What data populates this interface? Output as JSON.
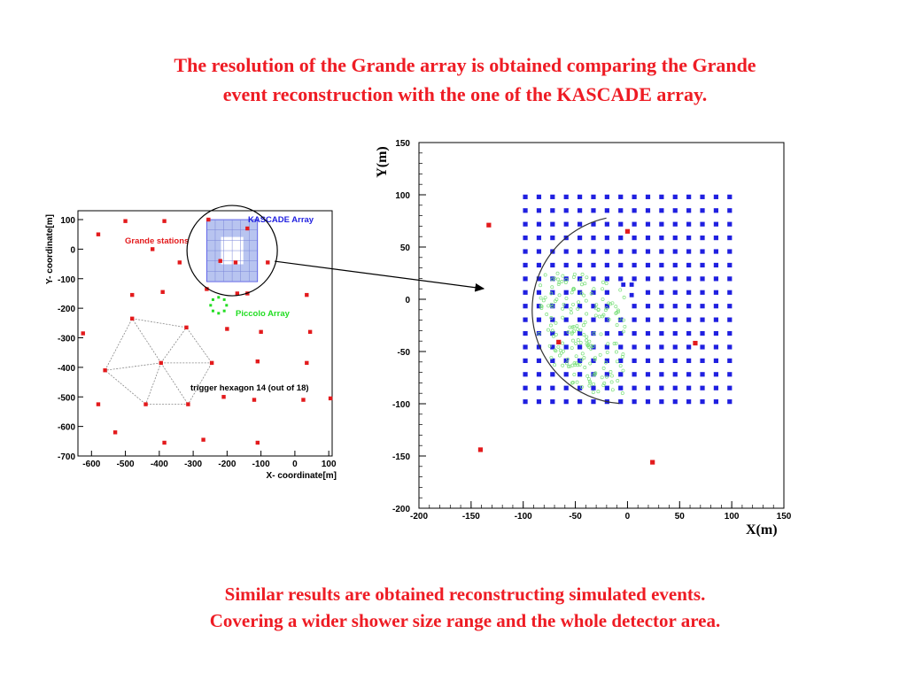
{
  "header": {
    "title_line1": "The resolution of the Grande array is obtained comparing the Grande",
    "title_line2": "event reconstruction with the one of the KASCADE array."
  },
  "footer": {
    "line1": "Similar results are obtained reconstructing simulated events.",
    "line2": "Covering a wider shower size range and the whole detector area."
  },
  "colors": {
    "title_red": "#ee1c24",
    "grande_station_red": "#e31a1c",
    "kascade_blue": "#1f1fe0",
    "kascade_fill": "#b8c4f0",
    "piccolo_green": "#22dd22",
    "shower_green": "#7ce07c"
  },
  "chart_data": [
    {
      "type": "scatter",
      "name": "grande-layout-map",
      "xlabel": "X- coordinate[m]",
      "ylabel": "Y- coordinate[m]",
      "xlim": [
        -640,
        110
      ],
      "ylim": [
        -700,
        130
      ],
      "xticks": [
        -600,
        -500,
        -400,
        -300,
        -200,
        -100,
        0,
        100
      ],
      "yticks": [
        100,
        0,
        -100,
        -200,
        -300,
        -400,
        -500,
        -600,
        -700
      ],
      "annotations": {
        "kascade": "KASCADE Array",
        "grande": "Grande stations",
        "piccolo": "Piccolo Array",
        "hexagon": "trigger hexagon 14 (out of 18)"
      },
      "kascade_region": {
        "x": [
          -260,
          -110
        ],
        "y": [
          -110,
          100
        ]
      },
      "piccolo_center": [
        -225,
        -190
      ],
      "grande_stations": [
        [
          -580,
          50
        ],
        [
          -500,
          95
        ],
        [
          -385,
          95
        ],
        [
          -255,
          100
        ],
        [
          -140,
          70
        ],
        [
          -420,
          0
        ],
        [
          -340,
          -45
        ],
        [
          -220,
          -40
        ],
        [
          -175,
          -45
        ],
        [
          -80,
          -45
        ],
        [
          -480,
          -155
        ],
        [
          -390,
          -145
        ],
        [
          -260,
          -135
        ],
        [
          -170,
          -150
        ],
        [
          35,
          -155
        ],
        [
          -140,
          -150
        ],
        [
          -625,
          -285
        ],
        [
          -480,
          -235
        ],
        [
          -320,
          -265
        ],
        [
          -200,
          -270
        ],
        [
          -100,
          -280
        ],
        [
          45,
          -280
        ],
        [
          -560,
          -410
        ],
        [
          -395,
          -385
        ],
        [
          -245,
          -385
        ],
        [
          -110,
          -380
        ],
        [
          35,
          -385
        ],
        [
          -580,
          -525
        ],
        [
          -440,
          -525
        ],
        [
          -315,
          -525
        ],
        [
          -210,
          -500
        ],
        [
          -120,
          -510
        ],
        [
          25,
          -510
        ],
        [
          105,
          -505
        ],
        [
          -530,
          -620
        ],
        [
          -385,
          -655
        ],
        [
          -270,
          -645
        ],
        [
          -110,
          -655
        ]
      ],
      "hexagon": [
        [
          -480,
          -235
        ],
        [
          -320,
          -265
        ],
        [
          -245,
          -385
        ],
        [
          -315,
          -525
        ],
        [
          -440,
          -525
        ],
        [
          -560,
          -410
        ]
      ],
      "hexagon_center": [
        -395,
        -385
      ]
    },
    {
      "type": "scatter",
      "name": "event-reconstruction-map",
      "xlabel": "X(m)",
      "ylabel": "Y(m)",
      "xlim": [
        -200,
        150
      ],
      "ylim": [
        -200,
        150
      ],
      "xticks": [
        -200,
        -150,
        -100,
        -50,
        0,
        50,
        100,
        150
      ],
      "yticks": [
        150,
        100,
        50,
        0,
        -50,
        -100,
        -150,
        -200
      ],
      "kascade_grid": {
        "x_start": -98,
        "x_end": 98,
        "y_start": -98,
        "y_end": 98,
        "n": 16
      },
      "kascade_missing": [
        [
          -4,
          14
        ],
        [
          4,
          14
        ],
        [
          4,
          4
        ]
      ],
      "grande_stations": [
        [
          -133,
          71
        ],
        [
          0,
          65
        ],
        [
          -66,
          -41
        ],
        [
          65,
          -42
        ],
        [
          -141,
          -144
        ],
        [
          24,
          -156
        ]
      ],
      "shower_front_arc": {
        "center_x": 0,
        "center_y": -10,
        "radius": 90
      },
      "shower_hits_region": {
        "x": [
          -95,
          0
        ],
        "y": [
          -90,
          25
        ]
      }
    }
  ]
}
